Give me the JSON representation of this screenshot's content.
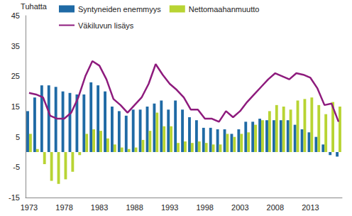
{
  "chart_data": {
    "type": "bar",
    "ylabel": "Tuhatta",
    "categories": [
      "1973",
      null,
      null,
      null,
      null,
      "1978",
      null,
      null,
      null,
      null,
      "1983",
      null,
      null,
      null,
      null,
      "1988",
      null,
      null,
      null,
      null,
      "1993",
      null,
      null,
      null,
      null,
      "1998",
      null,
      null,
      null,
      null,
      "2003",
      null,
      null,
      null,
      null,
      "2008",
      null,
      null,
      null,
      null,
      "2013",
      null,
      null,
      null,
      null
    ],
    "series": [
      {
        "name": "Syntyneiden enemmyys",
        "type": "bar",
        "color": "#1f6aa5",
        "values": [
          13.5,
          18,
          22,
          22,
          21.5,
          20,
          19.5,
          19,
          19,
          23,
          22,
          20,
          15,
          13.5,
          12,
          14,
          14,
          15,
          16,
          17,
          14,
          17,
          14,
          11.5,
          10.5,
          8,
          8,
          7.5,
          7.5,
          6,
          7.5,
          10,
          10,
          11,
          10.5,
          10.5,
          10.5,
          10.5,
          9,
          7.5,
          6.5,
          5,
          2.5,
          -1,
          -1.5
        ]
      },
      {
        "name": "Nettomaahanmuutto",
        "type": "bar",
        "color": "#b8d433",
        "values": [
          6,
          1,
          -4,
          -9.5,
          -10.5,
          -9,
          -6.5,
          -1,
          6,
          7.5,
          7,
          4.5,
          2.5,
          1.5,
          1,
          1.5,
          4,
          7,
          13,
          8.5,
          8.5,
          3,
          3.5,
          3,
          3.5,
          3,
          2.5,
          2.5,
          6,
          5,
          6,
          6.5,
          9,
          10.5,
          13.5,
          15.5,
          15,
          14,
          17,
          17.5,
          18,
          15.5,
          12.5,
          16.5,
          15
        ]
      },
      {
        "name": "Väkiluvun lisäys",
        "type": "line",
        "color": "#8e1b7d",
        "values": [
          19.5,
          19,
          18,
          12,
          11,
          11,
          13,
          18,
          25,
          30,
          28.5,
          24,
          17.5,
          15.5,
          13,
          15.5,
          18,
          22.5,
          29,
          25.5,
          22.5,
          20.5,
          18,
          14,
          14,
          11,
          11,
          10,
          13.5,
          11.5,
          13.5,
          16.5,
          19,
          21.5,
          24,
          26,
          25,
          24,
          26,
          25.5,
          24.5,
          21,
          15.5,
          16,
          10
        ]
      }
    ],
    "ylim": [
      -15,
      45
    ],
    "yticks": [
      -15,
      -5,
      5,
      15,
      25,
      35,
      45
    ],
    "grid": false,
    "legend": "top"
  }
}
